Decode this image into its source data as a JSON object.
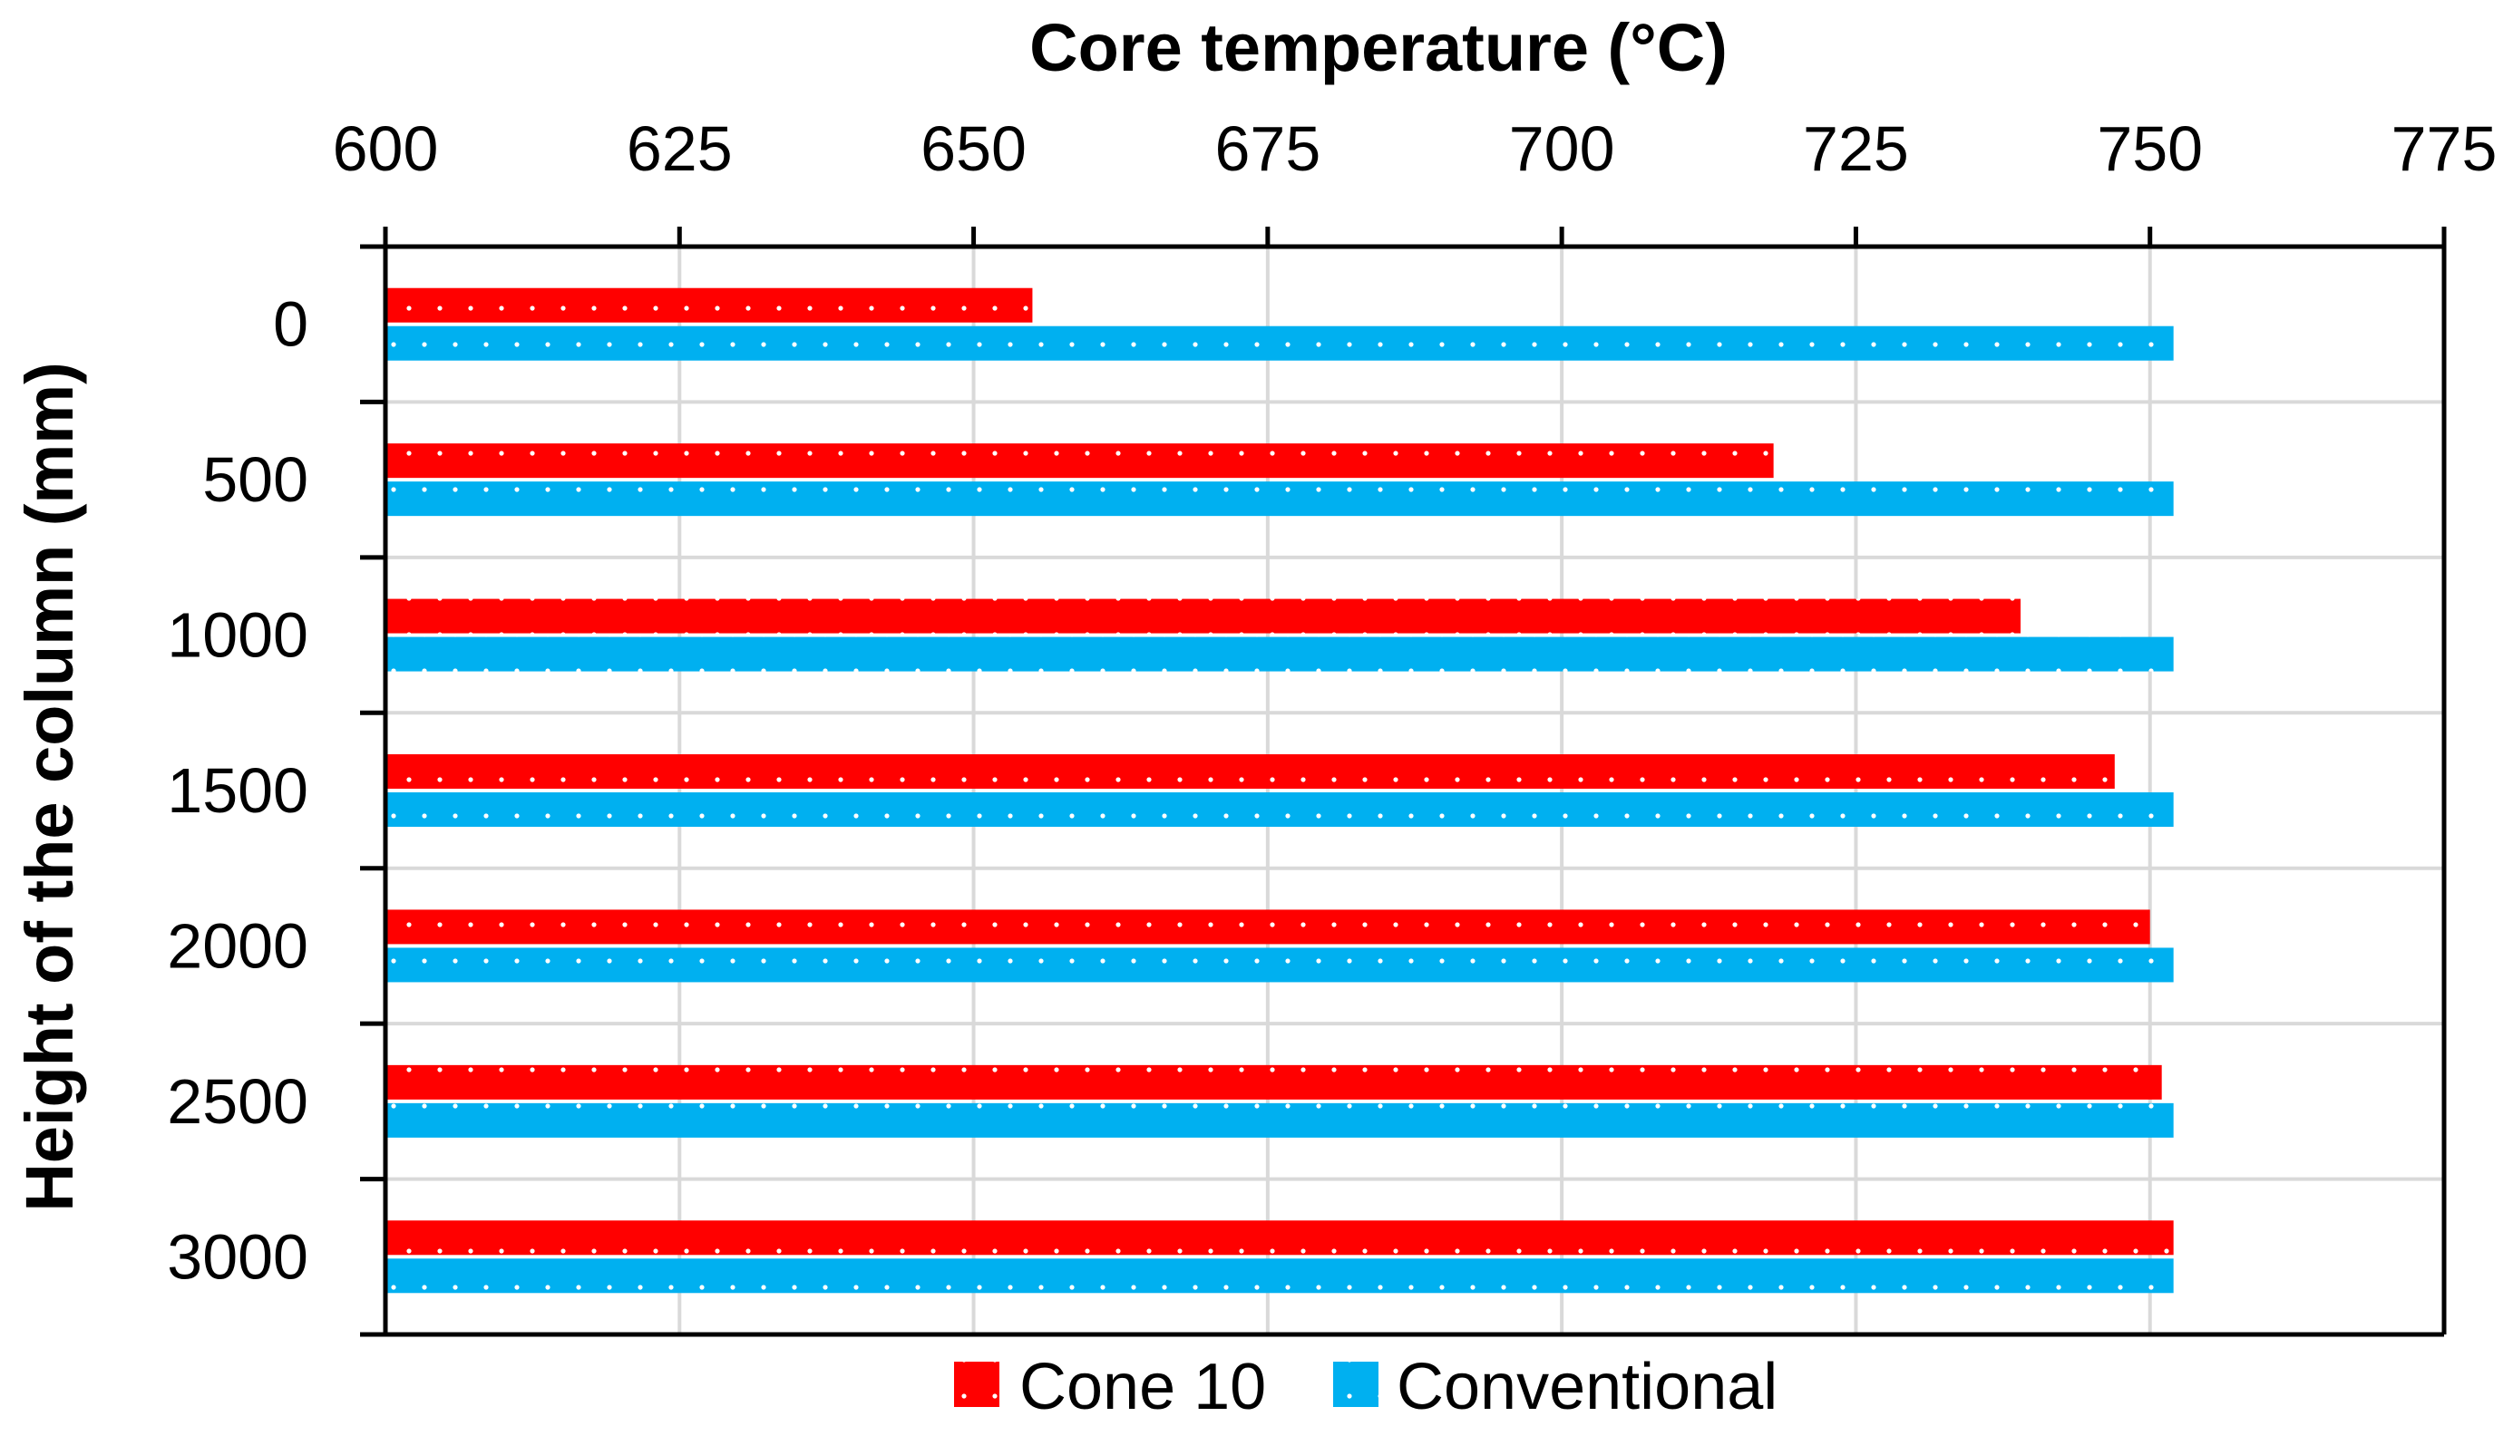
{
  "chart_data": {
    "type": "bar",
    "orientation": "horizontal",
    "title": "",
    "xlabel": "Core temperature (°C)",
    "ylabel": "Height of the column (mm)",
    "xlim": [
      600,
      775
    ],
    "xticks": [
      "600",
      "625",
      "650",
      "675",
      "700",
      "725",
      "750",
      "775"
    ],
    "xtick_values": [
      600,
      625,
      650,
      675,
      700,
      725,
      750,
      775
    ],
    "categories": [
      "0",
      "500",
      "1000",
      "1500",
      "2000",
      "2500",
      "3000"
    ],
    "series": [
      {
        "name": "Cone 10",
        "color": "#ff0000",
        "values": [
          655,
          718,
          739,
          747,
          750,
          751,
          752
        ]
      },
      {
        "name": "Conventional",
        "color": "#00b0f0",
        "values": [
          752,
          752,
          752,
          752,
          752,
          752,
          752
        ]
      }
    ],
    "grid": true,
    "legend_position": "bottom"
  }
}
